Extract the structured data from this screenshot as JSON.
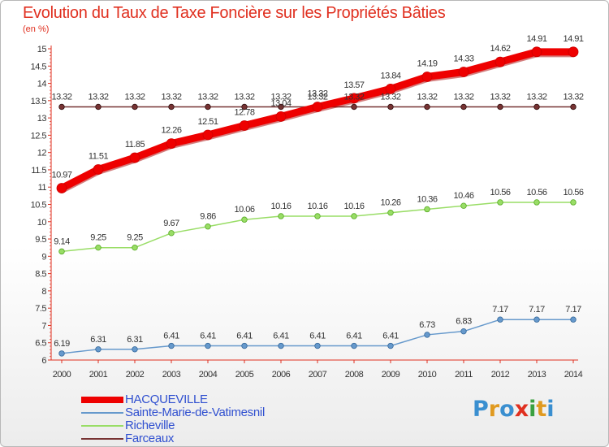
{
  "header": {
    "title": "Evolution du Taux de Taxe Foncière sur les Propriétés Bâties",
    "unit": "(en %)"
  },
  "logo": {
    "text": "Proxiti",
    "colors": [
      "#3a8fd0",
      "#e09a20",
      "#3a8fd0",
      "#e03020",
      "#3aa040",
      "#e09a20",
      "#3a8fd0"
    ]
  },
  "chart_data": {
    "type": "line",
    "x": [
      "2000",
      "2001",
      "2002",
      "2003",
      "2004",
      "2005",
      "2006",
      "2007",
      "2008",
      "2009",
      "2010",
      "2011",
      "2012",
      "2013",
      "2014"
    ],
    "ylim": [
      6,
      15
    ],
    "y_ticks": [
      "6",
      "6.5",
      "7",
      "7.5",
      "8",
      "8.5",
      "9",
      "9.5",
      "10",
      "10.5",
      "11",
      "11.5",
      "12",
      "12.5",
      "13",
      "13.5",
      "14",
      "14.5",
      "15"
    ],
    "grid": false,
    "series": [
      {
        "name": "HACQUEVILLE",
        "color": "#ee0000",
        "width": 9,
        "values": [
          10.97,
          11.51,
          11.85,
          12.26,
          12.51,
          12.78,
          13.04,
          13.32,
          13.57,
          13.84,
          14.19,
          14.33,
          14.62,
          14.91,
          14.91
        ],
        "labels": [
          "10.97",
          "11.51",
          "11.85",
          "12.26",
          "12.51",
          "12.78",
          "13.04",
          "13.32",
          "13.57",
          "13.84",
          "14.19",
          "14.33",
          "14.62",
          "14.91",
          "14.91"
        ]
      },
      {
        "name": "Sainte-Marie-de-Vatimesnil",
        "color": "#6699cc",
        "width": 1.5,
        "values": [
          6.19,
          6.31,
          6.31,
          6.41,
          6.41,
          6.41,
          6.41,
          6.41,
          6.41,
          6.41,
          6.73,
          6.83,
          7.17,
          7.17,
          7.17
        ],
        "labels": [
          "6.19",
          "6.31",
          "6.31",
          "6.41",
          "6.41",
          "6.41",
          "6.41",
          "6.41",
          "6.41",
          "6.41",
          "6.73",
          "6.83",
          "7.17",
          "7.17",
          "7.17"
        ]
      },
      {
        "name": "Richeville",
        "color": "#99dd66",
        "width": 1.5,
        "values": [
          9.14,
          9.25,
          9.25,
          9.67,
          9.86,
          10.06,
          10.16,
          10.16,
          10.16,
          10.26,
          10.36,
          10.46,
          10.56,
          10.56,
          10.56
        ],
        "labels": [
          "9.14",
          "9.25",
          "9.25",
          "9.67",
          "9.86",
          "10.06",
          "10.16",
          "10.16",
          "10.16",
          "10.26",
          "10.36",
          "10.46",
          "10.56",
          "10.56",
          "10.56"
        ]
      },
      {
        "name": "Farceaux",
        "color": "#773333",
        "width": 1.5,
        "values": [
          13.32,
          13.32,
          13.32,
          13.32,
          13.32,
          13.32,
          13.32,
          13.32,
          13.32,
          13.32,
          13.32,
          13.32,
          13.32,
          13.32,
          13.32
        ],
        "labels": [
          "13.32",
          "13.32",
          "13.32",
          "13.32",
          "13.32",
          "13.32",
          "13.32",
          "13.32",
          "13.32",
          "13.32",
          "13.32",
          "13.32",
          "13.32",
          "13.32",
          "13.32"
        ]
      }
    ]
  }
}
